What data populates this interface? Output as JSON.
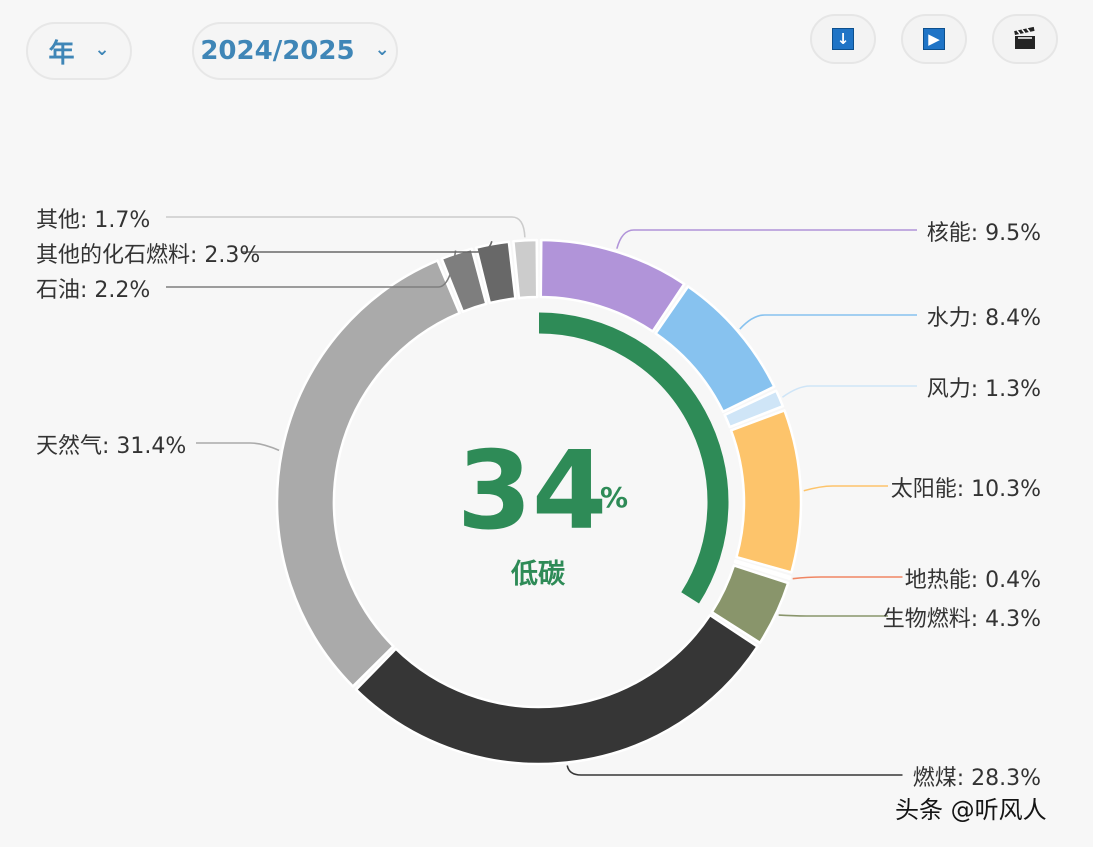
{
  "controls": {
    "period_label": "年",
    "year_label": "2024/2025"
  },
  "watermark": "头条 @听风人",
  "center": {
    "value": "34",
    "unit": "%",
    "label": "低碳"
  },
  "colors": {
    "accent": "#2e8b57",
    "control_text": "#3f86b7",
    "background": "#f7f7f7"
  },
  "icons": [
    "download-icon",
    "play-icon",
    "clapperboard-icon"
  ],
  "chart_data": {
    "type": "pie",
    "donut": true,
    "low_carbon_share": 34,
    "segments": [
      {
        "name": "核能",
        "value": 9.5,
        "label": "核能: 9.5%",
        "color": "#b194d9"
      },
      {
        "name": "水力",
        "value": 8.4,
        "label": "水力: 8.4%",
        "color": "#87c2ef"
      },
      {
        "name": "风力",
        "value": 1.3,
        "label": "风力: 1.3%",
        "color": "#cfe5f7"
      },
      {
        "name": "太阳能",
        "value": 10.3,
        "label": "太阳能: 10.3%",
        "color": "#fdc46b"
      },
      {
        "name": "地热能",
        "value": 0.4,
        "label": "地热能: 0.4%",
        "color": "#f08663"
      },
      {
        "name": "生物燃料",
        "value": 4.3,
        "label": "生物燃料: 4.3%",
        "color": "#89956b"
      },
      {
        "name": "燃煤",
        "value": 28.3,
        "label": "燃煤: 28.3%",
        "color": "#363636"
      },
      {
        "name": "天然气",
        "value": 31.4,
        "label": "天然气: 31.4%",
        "color": "#aaaaaa"
      },
      {
        "name": "石油",
        "value": 2.2,
        "label": "石油: 2.2%",
        "color": "#7e7e7e"
      },
      {
        "name": "其他的化石燃料",
        "value": 2.3,
        "label": "其他的化石燃料: 2.3%",
        "color": "#686868"
      },
      {
        "name": "其他",
        "value": 1.7,
        "label": "其他: 1.7%",
        "color": "#cccccc"
      }
    ]
  }
}
